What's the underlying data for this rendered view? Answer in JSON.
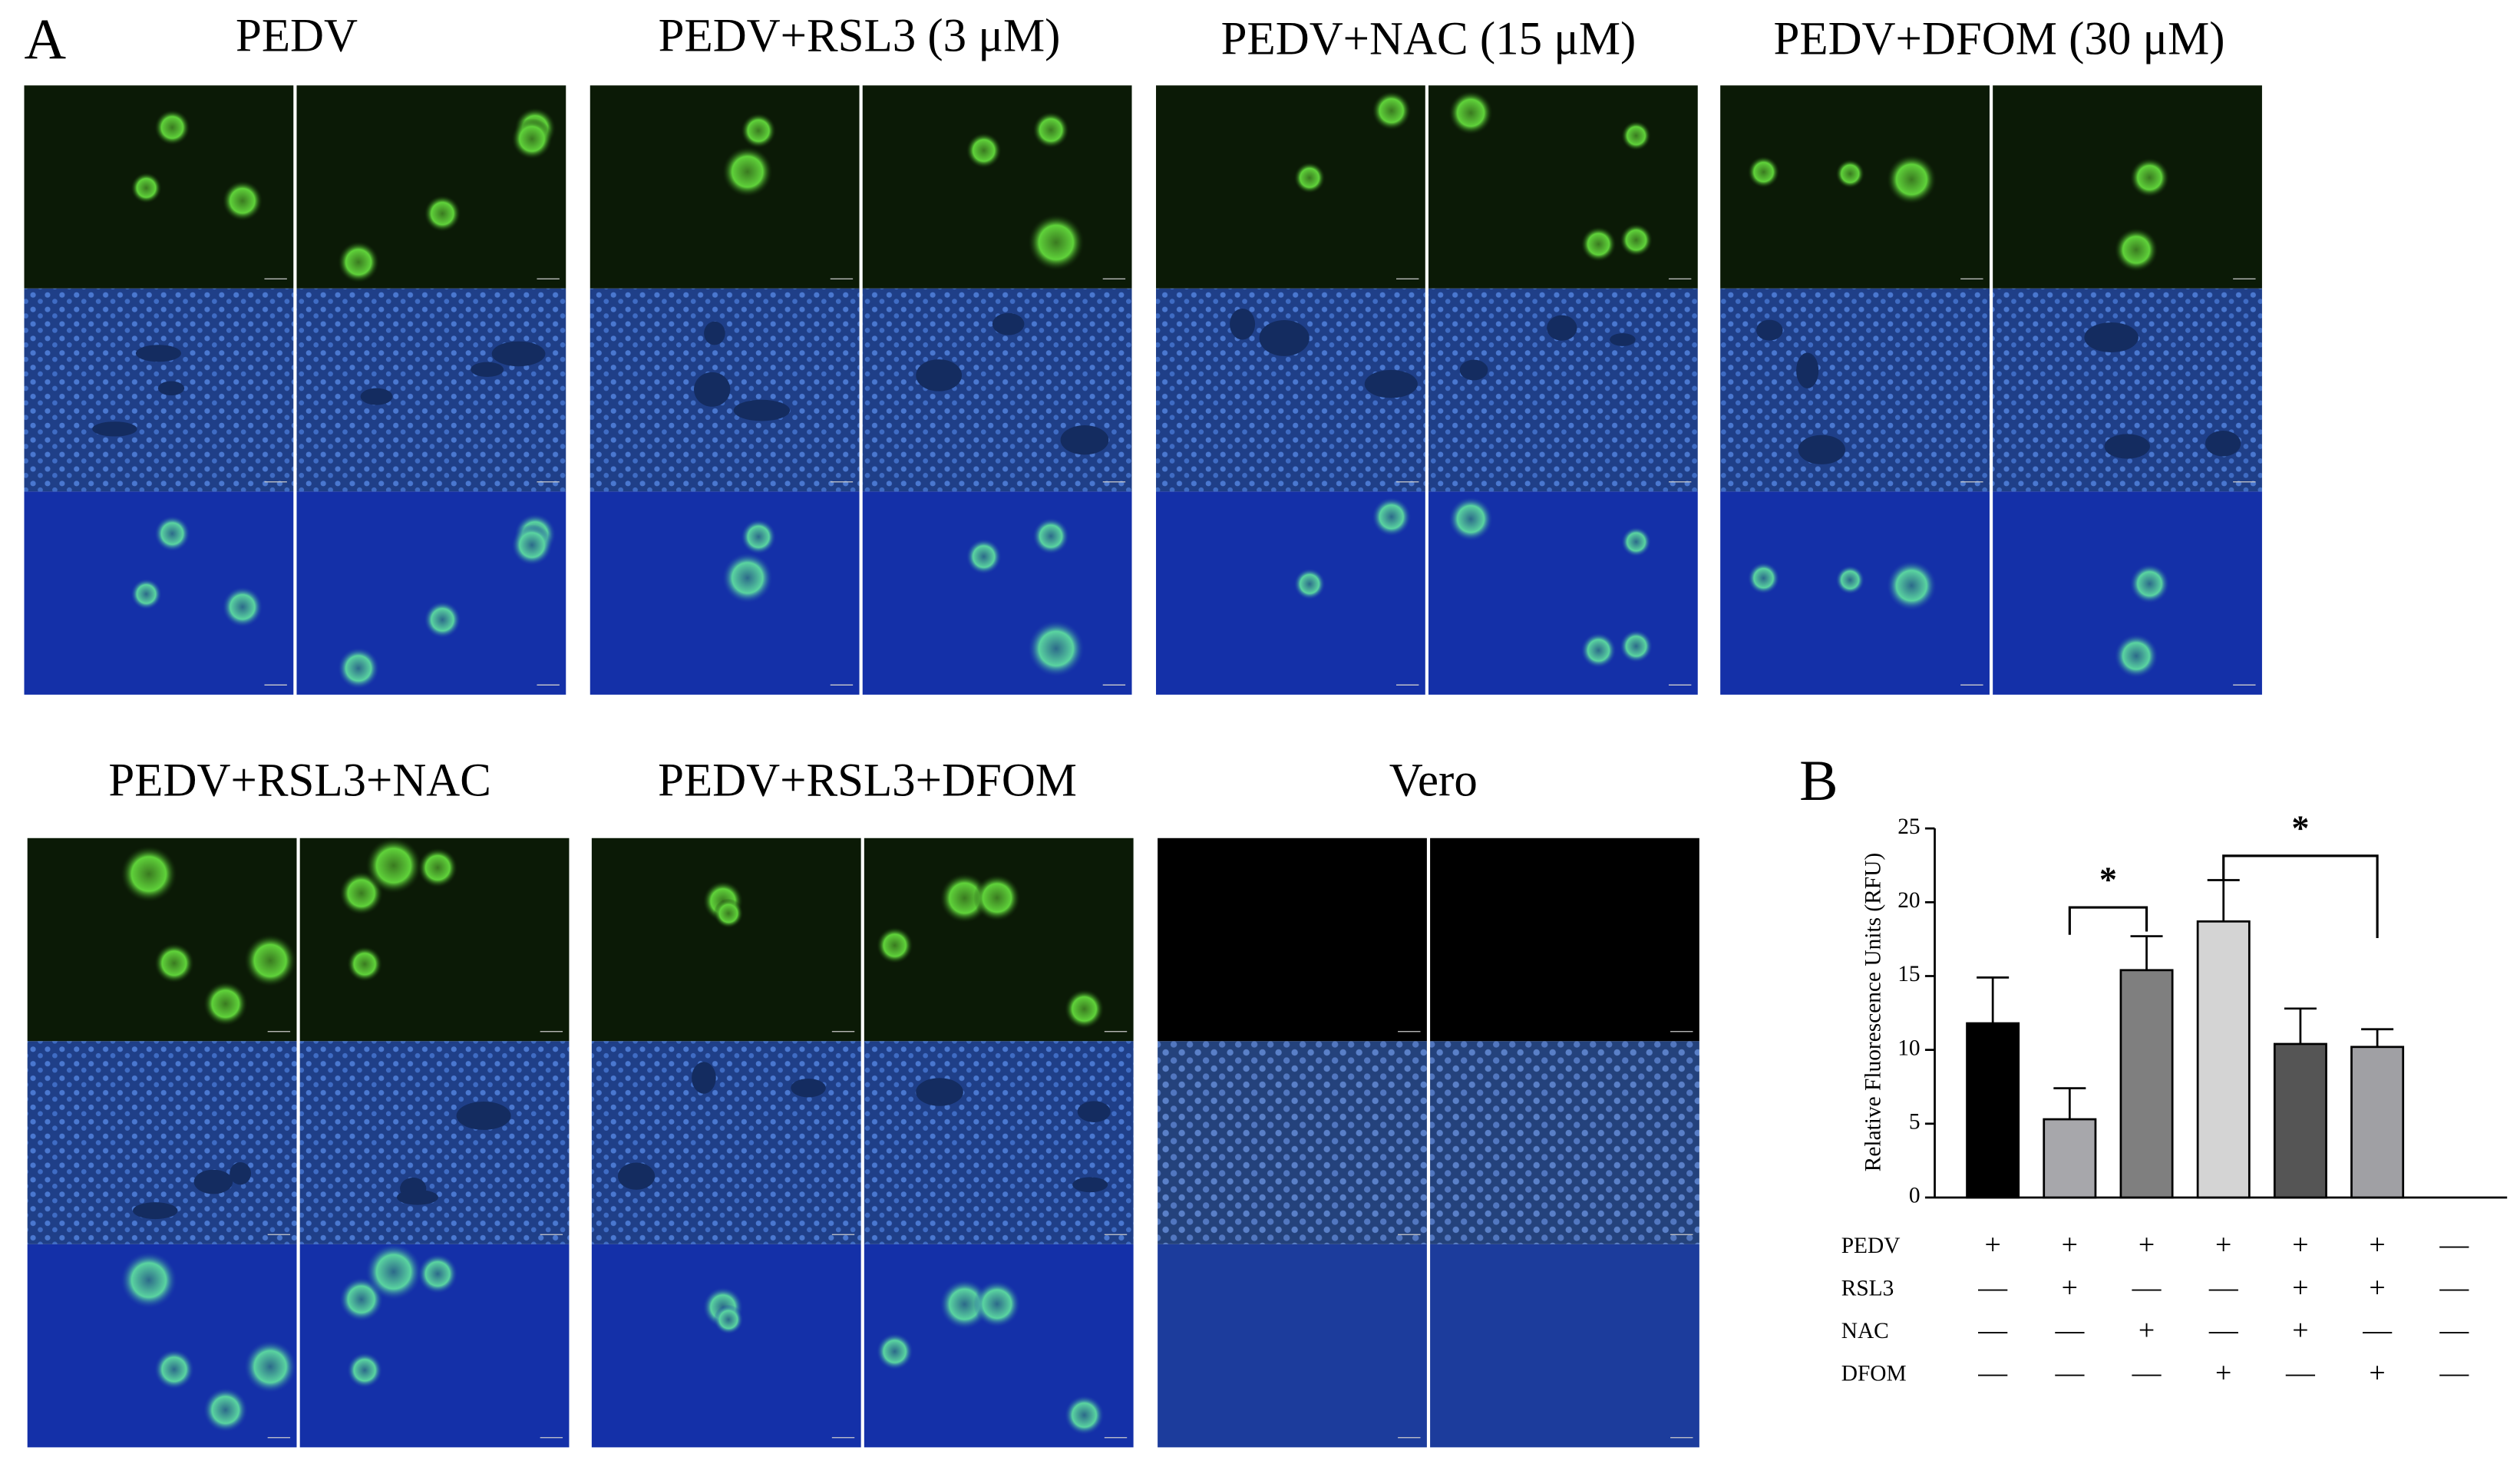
{
  "panel_labels": [
    "A",
    "B"
  ],
  "panel_a": {
    "titles": [
      "PEDV",
      "PEDV+RSL3 (3 μM)",
      "PEDV+NAC (15 μM)",
      "PEDV+DFOM (30 μM)",
      "PEDV+RSL3+NAC",
      "PEDV+RSL3+DFOM",
      "Vero"
    ]
  },
  "chart_data": {
    "type": "bar",
    "ylabel": "Relative Fluorescence Units (RFU)",
    "categories": [
      null,
      null,
      null,
      null,
      null,
      null,
      null
    ],
    "values": [
      11.8,
      5.3,
      15.4,
      18.7,
      10.4,
      10.2,
      null
    ],
    "errors": [
      3.1,
      2.1,
      2.3,
      2.8,
      2.4,
      1.2,
      null
    ],
    "colors": [
      "#000000",
      "#a7a7ab",
      "#7f7f7f",
      "#d4d4d4",
      "#555555",
      "#a0a0a4",
      "#ffffff"
    ],
    "ylim": [
      0,
      25
    ],
    "yticks": [
      0,
      5,
      10,
      15,
      20,
      25
    ],
    "significance": [
      "*",
      "*"
    ],
    "conditions": [
      {
        "name": "PEDV",
        "signs": [
          "+",
          "+",
          "+",
          "+",
          "+",
          "+",
          "—"
        ]
      },
      {
        "name": "RSL3",
        "signs": [
          "—",
          "+",
          "—",
          "—",
          "+",
          "+",
          "—"
        ]
      },
      {
        "name": "NAC",
        "signs": [
          "—",
          "—",
          "+",
          "—",
          "+",
          "—",
          "—"
        ]
      },
      {
        "name": "DFOM",
        "signs": [
          "—",
          "—",
          "—",
          "+",
          "—",
          "+",
          "—"
        ]
      }
    ]
  }
}
